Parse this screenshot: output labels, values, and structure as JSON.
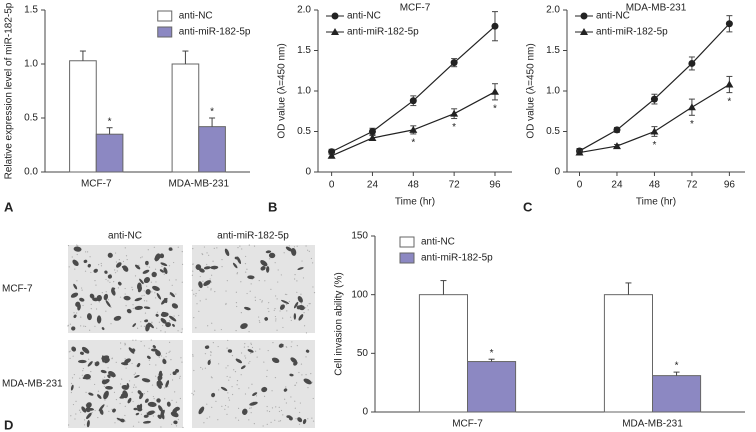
{
  "chart_data": [
    {
      "type": "bar",
      "panel": "A",
      "ylabel": "Relative expression level of miR-182-5p",
      "categories": [
        "MCF-7",
        "MDA-MB-231"
      ],
      "series": [
        {
          "name": "anti-NC",
          "color": "#ffffff",
          "values": [
            1.03,
            1.0
          ],
          "errors": [
            0.09,
            0.12
          ],
          "significance": [
            null,
            null
          ]
        },
        {
          "name": "anti-miR-182-5p",
          "color": "#8c88c2",
          "values": [
            0.35,
            0.42
          ],
          "errors": [
            0.06,
            0.08
          ],
          "significance": [
            "*",
            "*"
          ]
        }
      ],
      "ylim": [
        0,
        1.5
      ],
      "yticks": [
        {
          "value": 0,
          "label": "0.0"
        },
        0.5,
        {
          "value": 1,
          "label": "1.0"
        },
        1.5
      ],
      "legend": "upper right"
    },
    {
      "type": "line",
      "panel": "B",
      "title": "MCF-7",
      "ylabel": "OD value (λ=450 nm)",
      "xlabel": "Time (hr)",
      "x": [
        0,
        24,
        48,
        72,
        96
      ],
      "series": [
        {
          "name": "anti-NC",
          "color": "#222222",
          "marker": "circle",
          "values": [
            0.25,
            0.5,
            0.88,
            1.35,
            1.8
          ],
          "errors": [
            0.03,
            0.04,
            0.06,
            0.05,
            0.18
          ],
          "significance": [
            null,
            null,
            null,
            null,
            null
          ]
        },
        {
          "name": "anti-miR-182-5p",
          "color": "#222222",
          "marker": "triangle",
          "values": [
            0.2,
            0.42,
            0.52,
            0.72,
            0.99
          ],
          "errors": [
            0.02,
            0.03,
            0.05,
            0.06,
            0.1
          ],
          "significance": [
            null,
            null,
            "*",
            "*",
            "*"
          ]
        }
      ],
      "xlim": [
        -8,
        106
      ],
      "xticks": [
        0,
        24,
        48,
        72,
        96
      ],
      "ylim": [
        0,
        2
      ],
      "yticks": [
        0,
        0.5,
        {
          "value": 1,
          "label": "1.0"
        },
        1.5,
        {
          "value": 2,
          "label": "2.0"
        }
      ],
      "legend": "upper left"
    },
    {
      "type": "line",
      "panel": "C",
      "title": "MDA-MB-231",
      "ylabel": "OD value (λ=450 nm)",
      "xlabel": "Time (hr)",
      "x": [
        0,
        24,
        48,
        72,
        96
      ],
      "series": [
        {
          "name": "anti-NC",
          "color": "#222222",
          "marker": "circle",
          "values": [
            0.26,
            0.52,
            0.9,
            1.34,
            1.83
          ],
          "errors": [
            0.03,
            0.03,
            0.06,
            0.08,
            0.1
          ],
          "significance": [
            null,
            null,
            null,
            null,
            null
          ]
        },
        {
          "name": "anti-miR-182-5p",
          "color": "#222222",
          "marker": "triangle",
          "values": [
            0.24,
            0.32,
            0.5,
            0.8,
            1.08
          ],
          "errors": [
            0.02,
            0.02,
            0.06,
            0.1,
            0.1
          ],
          "significance": [
            null,
            null,
            "*",
            "*",
            "*"
          ]
        }
      ],
      "xlim": [
        -8,
        106
      ],
      "xticks": [
        0,
        24,
        48,
        72,
        96
      ],
      "ylim": [
        0,
        2
      ],
      "yticks": [
        0,
        0.5,
        {
          "value": 1,
          "label": "1.0"
        },
        1.5,
        {
          "value": 2,
          "label": "2.0"
        }
      ],
      "legend": "upper left"
    },
    {
      "type": "bar",
      "panel": "D",
      "ylabel": "Cell invasion ability (%)",
      "categories": [
        "MCF-7",
        "MDA-MB-231"
      ],
      "series": [
        {
          "name": "anti-NC",
          "color": "#ffffff",
          "values": [
            100,
            100
          ],
          "errors": [
            12,
            10
          ],
          "significance": [
            null,
            null
          ]
        },
        {
          "name": "anti-miR-182-5p",
          "color": "#8c88c2",
          "values": [
            43,
            31
          ],
          "errors": [
            2,
            3
          ],
          "significance": [
            "*",
            "*"
          ]
        }
      ],
      "ylim": [
        0,
        150
      ],
      "yticks": [
        0,
        50,
        100,
        150
      ],
      "legend": "upper left"
    }
  ],
  "micrographs": {
    "columns": [
      "anti-NC",
      "anti-miR-182-5p"
    ],
    "rows": [
      "MCF-7",
      "MDA-MB-231"
    ]
  }
}
